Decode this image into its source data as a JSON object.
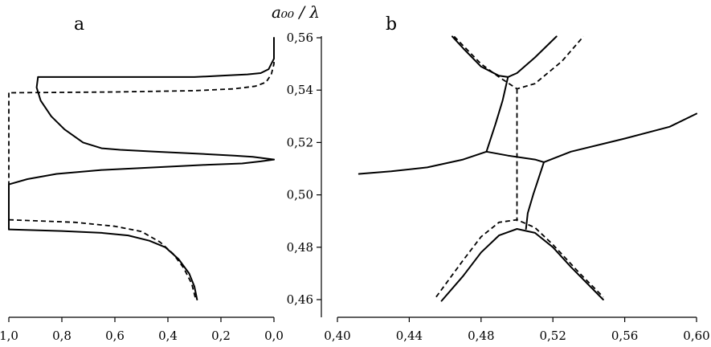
{
  "chart_data": [
    {
      "panel": "a",
      "type": "line",
      "x_axis": {
        "range": [
          1.0,
          0.0
        ],
        "ticks": [
          1.0,
          0.8,
          0.6,
          0.4,
          0.2,
          0.0
        ],
        "tick_labels": [
          "1,0",
          "0,8",
          "0,6",
          "0,4",
          "0,2",
          "0,0"
        ]
      },
      "y_axis": {
        "range": [
          0.455,
          0.56
        ],
        "ticks": [
          0.46,
          0.48,
          0.5,
          0.52,
          0.54,
          0.56
        ],
        "tick_labels": [
          "0,46",
          "0,48",
          "0,50",
          "0,52",
          "0,54",
          "0,56"
        ],
        "label": "a₀₀ / λ"
      },
      "grid": false,
      "series": [
        {
          "style": "solid",
          "points": [
            [
              0.0,
              0.56
            ],
            [
              0.0,
              0.552
            ],
            [
              0.02,
              0.548
            ],
            [
              0.05,
              0.5465
            ],
            [
              0.1,
              0.546
            ],
            [
              0.2,
              0.5455
            ],
            [
              0.3,
              0.545
            ],
            [
              0.5,
              0.545
            ],
            [
              0.7,
              0.545
            ],
            [
              0.89,
              0.545
            ]
          ]
        },
        {
          "style": "solid",
          "points": [
            [
              0.89,
              0.545
            ],
            [
              0.895,
              0.541
            ],
            [
              0.88,
              0.536
            ],
            [
              0.84,
              0.53
            ],
            [
              0.79,
              0.525
            ],
            [
              0.72,
              0.52
            ],
            [
              0.65,
              0.5178
            ],
            [
              0.58,
              0.5172
            ],
            [
              0.45,
              0.5165
            ],
            [
              0.3,
              0.5158
            ],
            [
              0.15,
              0.515
            ],
            [
              0.08,
              0.5145
            ],
            [
              0.0,
              0.5135
            ]
          ]
        },
        {
          "style": "solid",
          "points": [
            [
              0.0,
              0.5135
            ],
            [
              0.05,
              0.5128
            ],
            [
              0.12,
              0.512
            ],
            [
              0.25,
              0.5115
            ],
            [
              0.45,
              0.5105
            ],
            [
              0.65,
              0.5095
            ],
            [
              0.82,
              0.508
            ],
            [
              0.93,
              0.506
            ],
            [
              1.0,
              0.504
            ]
          ]
        },
        {
          "style": "solid",
          "points": [
            [
              1.0,
              0.504
            ],
            [
              1.0,
              0.4868
            ]
          ]
        },
        {
          "style": "solid",
          "points": [
            [
              1.0,
              0.4868
            ],
            [
              0.8,
              0.4862
            ],
            [
              0.65,
              0.4855
            ],
            [
              0.55,
              0.4845
            ],
            [
              0.47,
              0.4825
            ],
            [
              0.41,
              0.48
            ],
            [
              0.36,
              0.4755
            ],
            [
              0.32,
              0.47
            ],
            [
              0.3,
              0.465
            ],
            [
              0.29,
              0.46
            ]
          ]
        },
        {
          "style": "dashed",
          "points": [
            [
              0.0,
              0.56
            ],
            [
              0.0,
              0.55
            ],
            [
              0.01,
              0.546
            ],
            [
              0.03,
              0.543
            ],
            [
              0.07,
              0.5415
            ],
            [
              0.15,
              0.5405
            ],
            [
              0.3,
              0.5398
            ],
            [
              0.6,
              0.5393
            ],
            [
              1.0,
              0.539
            ]
          ]
        },
        {
          "style": "dashed",
          "points": [
            [
              1.0,
              0.539
            ],
            [
              1.0,
              0.4905
            ]
          ]
        },
        {
          "style": "dashed",
          "points": [
            [
              1.0,
              0.4905
            ],
            [
              0.75,
              0.4895
            ],
            [
              0.6,
              0.488
            ],
            [
              0.5,
              0.486
            ],
            [
              0.43,
              0.482
            ],
            [
              0.38,
              0.4775
            ],
            [
              0.34,
              0.472
            ],
            [
              0.31,
              0.466
            ],
            [
              0.295,
              0.46
            ]
          ]
        }
      ]
    },
    {
      "panel": "b",
      "type": "line",
      "x_axis": {
        "range": [
          0.4,
          0.6
        ],
        "ticks": [
          0.4,
          0.44,
          0.48,
          0.52,
          0.56,
          0.6
        ],
        "tick_labels": [
          "0,40",
          "0,44",
          "0,48",
          "0,52",
          "0,56",
          "0,60"
        ]
      },
      "y_axis": {
        "range": [
          0.455,
          0.56
        ]
      },
      "grid": false,
      "series": [
        {
          "style": "solid",
          "points": [
            [
              0.412,
              0.508
            ],
            [
              0.43,
              0.509
            ],
            [
              0.45,
              0.5105
            ],
            [
              0.47,
              0.5135
            ],
            [
              0.483,
              0.5165
            ],
            [
              0.495,
              0.515
            ],
            [
              0.51,
              0.5135
            ],
            [
              0.515,
              0.5125
            ],
            [
              0.53,
              0.5165
            ],
            [
              0.56,
              0.5215
            ],
            [
              0.585,
              0.526
            ],
            [
              0.6,
              0.531
            ]
          ]
        },
        {
          "style": "solid",
          "points": [
            [
              0.483,
              0.5165
            ],
            [
              0.488,
              0.527
            ],
            [
              0.492,
              0.536
            ],
            [
              0.495,
              0.545
            ]
          ]
        },
        {
          "style": "solid",
          "points": [
            [
              0.515,
              0.5125
            ],
            [
              0.509,
              0.5
            ],
            [
              0.506,
              0.493
            ],
            [
              0.505,
              0.487
            ]
          ]
        },
        {
          "style": "solid",
          "points": [
            [
              0.464,
              0.5605
            ],
            [
              0.47,
              0.556
            ],
            [
              0.48,
              0.549
            ],
            [
              0.49,
              0.5455
            ],
            [
              0.495,
              0.545
            ],
            [
              0.5,
              0.5465
            ],
            [
              0.51,
              0.5525
            ],
            [
              0.522,
              0.5605
            ]
          ]
        },
        {
          "style": "dashed",
          "points": [
            [
              0.465,
              0.5605
            ],
            [
              0.48,
              0.55
            ],
            [
              0.49,
              0.545
            ],
            [
              0.5,
              0.5405
            ],
            [
              0.51,
              0.5425
            ],
            [
              0.525,
              0.551
            ],
            [
              0.537,
              0.5605
            ]
          ]
        },
        {
          "style": "dashed",
          "points": [
            [
              0.5,
              0.5405
            ],
            [
              0.5,
              0.49
            ]
          ]
        },
        {
          "style": "solid",
          "points": [
            [
              0.458,
              0.4595
            ],
            [
              0.47,
              0.469
            ],
            [
              0.48,
              0.478
            ],
            [
              0.49,
              0.4845
            ],
            [
              0.5,
              0.487
            ],
            [
              0.51,
              0.4855
            ],
            [
              0.52,
              0.48
            ],
            [
              0.53,
              0.4725
            ],
            [
              0.548,
              0.46
            ]
          ]
        },
        {
          "style": "dashed",
          "points": [
            [
              0.455,
              0.461
            ],
            [
              0.47,
              0.475
            ],
            [
              0.48,
              0.484
            ],
            [
              0.49,
              0.4895
            ],
            [
              0.5,
              0.4905
            ],
            [
              0.51,
              0.4875
            ],
            [
              0.52,
              0.481
            ],
            [
              0.535,
              0.47
            ],
            [
              0.548,
              0.461
            ]
          ]
        }
      ]
    }
  ],
  "labels": {
    "panel_a": "a",
    "panel_b": "b",
    "y_axis_title": "a₀₀ / λ"
  }
}
